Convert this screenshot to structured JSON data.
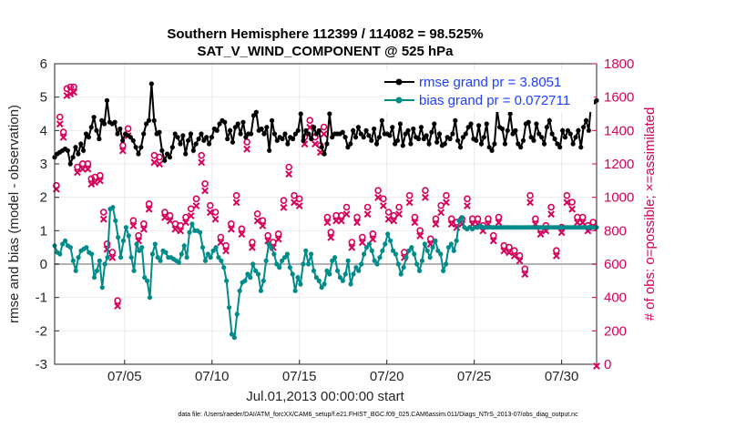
{
  "chart_data": {
    "type": "line",
    "title": "Southern Hemisphere 112399 / 114082 = 98.525%",
    "subtitle": "SAT_V_WIND_COMPONENT @ 525 hPa",
    "xlabel": "Jul.01,2013 00:00:00 start",
    "ylabel_left": "rmse and bias (model - observation)",
    "ylabel_right": "# of obs: o=possible; ×=assimilated",
    "footer": "data file: /Users/raeder/DAI/ATM_forcXX/CAM6_setup/f.e21.FHIST_BGC.f09_025.CAM6assim.011/Diags_NTrS_2013-07/obs_diag_output.nc",
    "x_ticks": [
      "07/05",
      "07/10",
      "07/15",
      "07/20",
      "07/25",
      "07/30"
    ],
    "x_tick_days": [
      5,
      10,
      15,
      20,
      25,
      30
    ],
    "xlim_days": [
      1,
      32
    ],
    "ylim_left": [
      -3,
      6
    ],
    "yticks_left": [
      "-3",
      "-2",
      "-1",
      "0",
      "1",
      "2",
      "3",
      "4",
      "5",
      "6"
    ],
    "ylim_right": [
      0,
      1800
    ],
    "yticks_right": [
      "0",
      "200",
      "400",
      "600",
      "800",
      "1000",
      "1200",
      "1400",
      "1600",
      "1800"
    ],
    "legend_position": "top-right",
    "grid": true,
    "colors": {
      "rmse": "#000000",
      "bias": "#008b8b",
      "obs": "#d6005b",
      "zero_line": "#b3b3b3",
      "legend_text": "#1f3fff"
    },
    "series": [
      {
        "name": "rmse grand pr = 3.8051",
        "axis": "left",
        "color": "#000000",
        "marker": "star",
        "values": [
          3.2,
          3.3,
          3.35,
          3.4,
          3.45,
          3.4,
          3.0,
          3.2,
          3.5,
          3.3,
          3.6,
          3.4,
          3.9,
          3.8,
          4.1,
          4.4,
          4.0,
          3.75,
          4.3,
          4.2,
          4.9,
          4.25,
          4.2,
          4.25,
          3.9,
          4.05,
          3.7,
          3.9,
          3.85,
          3.8,
          3.7,
          3.5,
          3.3,
          3.5,
          3.9,
          4.2,
          4.3,
          5.4,
          4.3,
          3.9,
          3.95,
          3.4,
          3.1,
          3.3,
          3.2,
          3.5,
          3.9,
          3.8,
          3.6,
          3.85,
          3.3,
          3.7,
          3.9,
          3.4,
          3.6,
          3.75,
          3.9,
          3.7,
          3.8,
          3.6,
          3.8,
          4.05,
          4.0,
          4.2,
          4.3,
          4.25,
          3.75,
          4.0,
          3.65,
          4.1,
          4.2,
          3.9,
          4.25,
          3.8,
          3.9,
          3.9,
          4.45,
          4.55,
          4.0,
          4.05,
          3.9,
          4.1,
          3.4,
          4.3,
          3.9,
          3.7,
          3.8,
          3.75,
          3.9,
          3.6,
          3.8,
          3.75,
          3.9,
          4.0,
          4.5,
          3.7,
          4.0,
          3.9,
          3.75,
          4.1,
          3.9,
          4.0,
          3.5,
          3.3,
          3.6,
          4.5,
          3.8,
          3.9,
          3.9,
          3.9,
          3.95,
          3.8,
          3.5,
          3.6,
          4.0,
          3.8,
          4.1,
          3.9,
          3.8,
          4.0,
          3.85,
          3.7,
          4.05,
          3.6,
          3.8,
          4.3,
          3.9,
          3.9,
          3.85,
          4.1,
          3.6,
          3.7,
          4.2,
          3.55,
          3.9,
          4.0,
          3.6,
          4.05,
          3.8,
          3.75,
          4.1,
          3.75,
          3.85,
          3.6,
          3.95,
          4.2,
          3.65,
          3.9,
          3.55,
          3.6,
          3.8,
          3.75,
          3.9,
          4.3,
          3.7,
          3.5,
          3.8,
          3.9,
          4.1,
          4.2,
          3.75,
          3.7,
          4.15,
          3.6,
          3.8,
          4.2,
          3.5,
          3.4,
          3.6,
          4.6,
          4.1,
          4.05,
          3.6,
          4.0,
          4.5,
          3.9,
          4.0,
          3.6,
          3.5,
          3.7,
          4.2,
          4.25,
          3.8,
          3.7,
          4.2,
          3.9,
          3.8,
          3.6,
          4.1,
          4.3,
          3.9,
          3.75,
          3.6,
          3.5,
          4.0,
          3.8,
          4.0,
          3.9,
          3.6,
          3.8,
          4.0,
          3.5,
          4.1,
          4.3,
          4.0,
          4.9,
          4.85,
          4.9
        ]
      },
      {
        "name": "bias grand pr = 0.072711",
        "axis": "left",
        "color": "#008b8b",
        "marker": "star",
        "values": [
          0.55,
          0.35,
          0.3,
          0.6,
          0.7,
          0.55,
          0.5,
          0.1,
          -0.2,
          0.2,
          0.4,
          0.45,
          0.5,
          0.35,
          0.3,
          -0.4,
          -0.2,
          0.1,
          -0.7,
          0.0,
          0.2,
          1.65,
          1.7,
          1.3,
          0.8,
          0.2,
          0.7,
          1.1,
          0.85,
          0.2,
          -0.2,
          0.6,
          0.4,
          0.5,
          -0.4,
          -0.5,
          -1.0,
          0.3,
          0.6,
          0.2,
          0.1,
          0.4,
          0.35,
          0.2,
          0.2,
          0.15,
          0.1,
          0.05,
          0.3,
          0.55,
          0.2,
          0.95,
          1.2,
          1.0,
          1.0,
          0.95,
          0.5,
          0.1,
          0.3,
          0.2,
          0.4,
          0.5,
          0.2,
          0.1,
          -0.1,
          -0.5,
          -1.3,
          -2.1,
          -2.2,
          -1.5,
          -0.8,
          -0.55,
          -0.5,
          -0.3,
          -0.4,
          0.0,
          -0.2,
          -0.3,
          -0.8,
          -0.5,
          0.1,
          0.6,
          0.5,
          0.3,
          0.0,
          -0.1,
          0.1,
          0.2,
          0.3,
          -0.1,
          -0.3,
          -0.8,
          -0.4,
          -0.6,
          0.0,
          0.4,
          0.0,
          0.3,
          -0.2,
          -0.4,
          -0.5,
          -0.7,
          -0.6,
          -0.2,
          -0.3,
          0.1,
          0.2,
          -0.2,
          -0.4,
          -0.5,
          -0.3,
          0.1,
          -0.6,
          -0.3,
          -0.1,
          -0.2,
          0.0,
          0.3,
          0.5,
          0.6,
          0.4,
          0.1,
          0.0,
          0.2,
          0.4,
          0.6,
          0.9,
          0.7,
          0.4,
          0.3,
          0.0,
          -0.3,
          -0.1,
          0.2,
          0.4,
          0.5,
          0.3,
          0.0,
          -0.2,
          0.1,
          0.6,
          0.4,
          0.2,
          0.5,
          0.7,
          0.4,
          0.3,
          -0.2,
          0.0,
          0.5,
          0.6,
          0.4,
          0.7,
          1.3,
          1.4,
          1.1,
          1.05,
          1.1,
          1.05,
          1.1,
          1.1,
          1.15,
          1.1,
          1.1,
          1.1,
          1.1,
          1.1,
          1.1,
          1.1,
          1.1,
          1.1,
          1.1,
          1.1,
          1.1,
          1.1,
          1.1,
          1.1,
          1.1,
          1.1,
          1.1,
          1.1,
          1.1,
          1.1,
          1.1,
          1.1,
          1.1,
          1.1,
          1.1,
          1.1,
          1.1,
          1.1,
          1.1,
          1.1,
          1.1,
          1.1,
          1.1,
          1.1,
          1.1,
          1.1,
          1.1,
          1.1,
          1.1,
          1.1,
          1.1,
          1.1,
          1.1
        ]
      }
    ],
    "obs_possible": {
      "axis": "right",
      "color": "#d6005b",
      "points": [
        [
          1.1,
          1060
        ],
        [
          1.3,
          1470
        ],
        [
          1.5,
          1380
        ],
        [
          1.7,
          1640
        ],
        [
          1.9,
          1650
        ],
        [
          2.1,
          1650
        ],
        [
          2.3,
          1170
        ],
        [
          2.6,
          1190
        ],
        [
          2.9,
          1190
        ],
        [
          3.1,
          1100
        ],
        [
          3.3,
          1110
        ],
        [
          3.6,
          1120
        ],
        [
          3.8,
          900
        ],
        [
          4.0,
          710
        ],
        [
          4.3,
          660
        ],
        [
          4.6,
          370
        ],
        [
          4.9,
          1300
        ],
        [
          5.2,
          1400
        ],
        [
          5.5,
          850
        ],
        [
          5.8,
          760
        ],
        [
          6.1,
          830
        ],
        [
          6.4,
          950
        ],
        [
          6.7,
          1240
        ],
        [
          7.0,
          1230
        ],
        [
          7.3,
          900
        ],
        [
          7.6,
          880
        ],
        [
          7.9,
          830
        ],
        [
          8.2,
          820
        ],
        [
          8.5,
          870
        ],
        [
          8.8,
          920
        ],
        [
          9.1,
          980
        ],
        [
          9.4,
          1240
        ],
        [
          9.6,
          1070
        ],
        [
          9.9,
          940
        ],
        [
          10.2,
          900
        ],
        [
          10.5,
          750
        ],
        [
          10.8,
          700
        ],
        [
          11.1,
          830
        ],
        [
          11.4,
          1000
        ],
        [
          11.7,
          800
        ],
        [
          12.0,
          1320
        ],
        [
          12.3,
          720
        ],
        [
          12.6,
          890
        ],
        [
          12.9,
          850
        ],
        [
          13.2,
          760
        ],
        [
          13.5,
          720
        ],
        [
          13.8,
          770
        ],
        [
          14.1,
          970
        ],
        [
          14.4,
          1170
        ],
        [
          14.7,
          1000
        ],
        [
          15.0,
          980
        ],
        [
          15.3,
          1350
        ],
        [
          15.6,
          1450
        ],
        [
          15.9,
          1350
        ],
        [
          16.2,
          1300
        ],
        [
          16.4,
          1410
        ],
        [
          16.6,
          870
        ],
        [
          16.8,
          780
        ],
        [
          17.1,
          880
        ],
        [
          17.4,
          880
        ],
        [
          17.7,
          930
        ],
        [
          18.0,
          720
        ],
        [
          18.3,
          870
        ],
        [
          18.6,
          750
        ],
        [
          18.9,
          930
        ],
        [
          19.2,
          770
        ],
        [
          19.5,
          1030
        ],
        [
          19.8,
          980
        ],
        [
          20.1,
          900
        ],
        [
          20.4,
          880
        ],
        [
          20.7,
          930
        ],
        [
          21.0,
          660
        ],
        [
          21.3,
          1000
        ],
        [
          21.6,
          870
        ],
        [
          21.9,
          790
        ],
        [
          22.2,
          1030
        ],
        [
          22.5,
          740
        ],
        [
          22.8,
          860
        ],
        [
          23.1,
          940
        ],
        [
          23.4,
          1000
        ],
        [
          23.7,
          860
        ],
        [
          24.0,
          840
        ],
        [
          24.3,
          860
        ],
        [
          24.6,
          980
        ],
        [
          24.9,
          860
        ],
        [
          25.2,
          860
        ],
        [
          25.5,
          820
        ],
        [
          25.8,
          860
        ],
        [
          26.1,
          760
        ],
        [
          26.4,
          870
        ],
        [
          26.7,
          700
        ],
        [
          27.0,
          690
        ],
        [
          27.3,
          670
        ],
        [
          27.6,
          640
        ],
        [
          27.9,
          560
        ],
        [
          28.2,
          1000
        ],
        [
          28.5,
          860
        ],
        [
          28.8,
          800
        ],
        [
          29.1,
          820
        ],
        [
          29.4,
          930
        ],
        [
          29.7,
          670
        ],
        [
          30.0,
          810
        ],
        [
          30.3,
          1000
        ],
        [
          30.6,
          960
        ],
        [
          30.9,
          870
        ],
        [
          31.2,
          870
        ],
        [
          31.5,
          820
        ],
        [
          31.8,
          840
        ]
      ]
    },
    "obs_assimilated": {
      "axis": "right",
      "color": "#d6005b",
      "points": [
        [
          1.1,
          1060
        ],
        [
          1.3,
          1450
        ],
        [
          1.5,
          1370
        ],
        [
          1.7,
          1620
        ],
        [
          1.9,
          1630
        ],
        [
          2.1,
          1640
        ],
        [
          2.3,
          1160
        ],
        [
          2.6,
          1180
        ],
        [
          2.9,
          1180
        ],
        [
          3.1,
          1090
        ],
        [
          3.3,
          1100
        ],
        [
          3.6,
          1110
        ],
        [
          3.8,
          880
        ],
        [
          4.0,
          700
        ],
        [
          4.3,
          650
        ],
        [
          4.6,
          360
        ],
        [
          4.9,
          1290
        ],
        [
          5.2,
          1380
        ],
        [
          5.5,
          840
        ],
        [
          5.8,
          750
        ],
        [
          6.1,
          820
        ],
        [
          6.4,
          940
        ],
        [
          6.7,
          1220
        ],
        [
          7.0,
          1210
        ],
        [
          7.3,
          890
        ],
        [
          7.6,
          870
        ],
        [
          7.9,
          820
        ],
        [
          8.2,
          810
        ],
        [
          8.5,
          860
        ],
        [
          8.8,
          900
        ],
        [
          9.1,
          960
        ],
        [
          9.4,
          1220
        ],
        [
          9.6,
          1050
        ],
        [
          9.9,
          920
        ],
        [
          10.2,
          880
        ],
        [
          10.5,
          740
        ],
        [
          10.8,
          690
        ],
        [
          11.1,
          820
        ],
        [
          11.4,
          980
        ],
        [
          11.7,
          790
        ],
        [
          12.0,
          1300
        ],
        [
          12.3,
          710
        ],
        [
          12.6,
          870
        ],
        [
          12.9,
          840
        ],
        [
          13.2,
          750
        ],
        [
          13.5,
          710
        ],
        [
          13.8,
          760
        ],
        [
          14.1,
          950
        ],
        [
          14.4,
          1150
        ],
        [
          14.7,
          980
        ],
        [
          15.0,
          960
        ],
        [
          15.3,
          1330
        ],
        [
          15.6,
          1430
        ],
        [
          15.9,
          1330
        ],
        [
          16.2,
          1280
        ],
        [
          16.4,
          1390
        ],
        [
          16.6,
          860
        ],
        [
          16.8,
          770
        ],
        [
          17.1,
          870
        ],
        [
          17.4,
          870
        ],
        [
          17.7,
          910
        ],
        [
          18.0,
          710
        ],
        [
          18.3,
          860
        ],
        [
          18.6,
          740
        ],
        [
          18.9,
          910
        ],
        [
          19.2,
          760
        ],
        [
          19.5,
          1010
        ],
        [
          19.8,
          960
        ],
        [
          20.1,
          880
        ],
        [
          20.4,
          870
        ],
        [
          20.7,
          910
        ],
        [
          21.0,
          650
        ],
        [
          21.3,
          980
        ],
        [
          21.6,
          860
        ],
        [
          21.9,
          780
        ],
        [
          22.2,
          1010
        ],
        [
          22.5,
          730
        ],
        [
          22.8,
          850
        ],
        [
          23.1,
          920
        ],
        [
          23.4,
          980
        ],
        [
          23.7,
          850
        ],
        [
          24.0,
          830
        ],
        [
          24.3,
          850
        ],
        [
          24.6,
          960
        ],
        [
          24.9,
          850
        ],
        [
          25.2,
          850
        ],
        [
          25.5,
          810
        ],
        [
          25.8,
          850
        ],
        [
          26.1,
          750
        ],
        [
          26.4,
          860
        ],
        [
          26.7,
          690
        ],
        [
          27.0,
          680
        ],
        [
          27.3,
          660
        ],
        [
          27.6,
          630
        ],
        [
          27.9,
          550
        ],
        [
          28.2,
          980
        ],
        [
          28.5,
          850
        ],
        [
          28.8,
          790
        ],
        [
          29.1,
          810
        ],
        [
          29.4,
          910
        ],
        [
          29.7,
          660
        ],
        [
          30.0,
          800
        ],
        [
          30.3,
          980
        ],
        [
          30.6,
          940
        ],
        [
          30.9,
          860
        ],
        [
          31.2,
          860
        ],
        [
          31.5,
          810
        ],
        [
          31.8,
          830
        ],
        [
          32.0,
          0
        ]
      ]
    }
  }
}
